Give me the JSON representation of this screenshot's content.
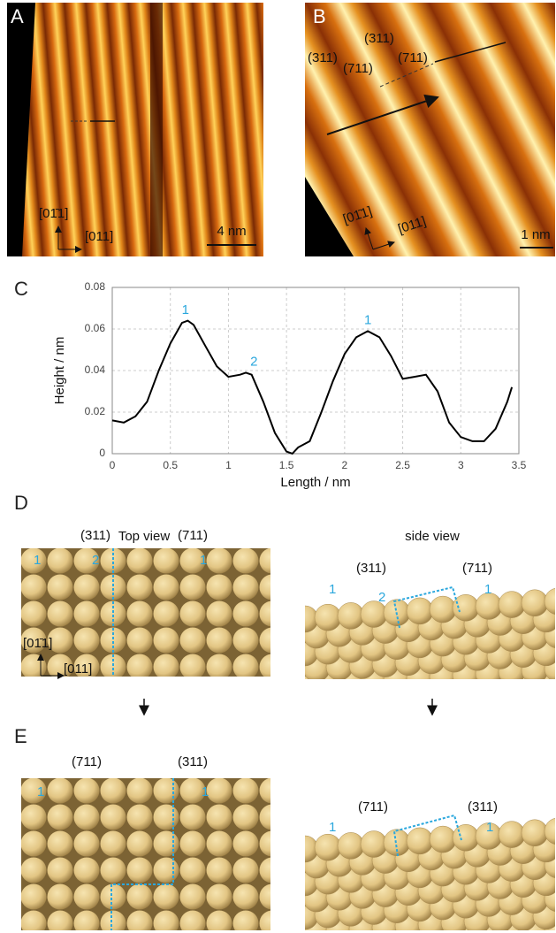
{
  "panels": {
    "A": {
      "letter": "A",
      "dir_up": "[01̄1]",
      "dir_right": "[011]",
      "scale": "4 nm"
    },
    "B": {
      "letter": "B",
      "plane1": "(311)",
      "plane2": "(311)",
      "plane3": "(711)",
      "plane4": "(711)",
      "dir_up": "[01̄1]",
      "dir_right": "[011]",
      "scale": "1 nm"
    },
    "C": {
      "letter": "C"
    },
    "D": {
      "letter": "D",
      "top_title": "Top view",
      "side_title": "side view",
      "top_plane1": "(311)",
      "top_plane2": "(711)",
      "top_site1": "1",
      "top_site2": "2",
      "top_site3": "1",
      "side_plane1": "(311)",
      "side_plane2": "(711)",
      "side_site1": "1",
      "side_site2": "2",
      "side_site3": "1",
      "dir_up": "[01̄1]",
      "dir_right": "[011]"
    },
    "E": {
      "letter": "E",
      "top_plane1": "(711)",
      "top_plane2": "(311)",
      "top_site1": "1",
      "top_site2": "1",
      "side_plane1": "(711)",
      "side_plane2": "(311)",
      "side_site1": "1",
      "side_site2": "1"
    }
  },
  "chart_data": {
    "type": "line",
    "xlabel": "Length / nm",
    "ylabel": "Height / nm",
    "color": "#000000",
    "x": [
      0,
      0.1,
      0.2,
      0.3,
      0.4,
      0.5,
      0.6,
      0.65,
      0.7,
      0.8,
      0.9,
      1.0,
      1.1,
      1.15,
      1.2,
      1.3,
      1.4,
      1.5,
      1.55,
      1.6,
      1.7,
      1.8,
      1.9,
      2.0,
      2.1,
      2.2,
      2.3,
      2.4,
      2.5,
      2.6,
      2.7,
      2.8,
      2.9,
      3.0,
      3.1,
      3.2,
      3.3,
      3.4,
      3.44
    ],
    "values": [
      0.016,
      0.015,
      0.018,
      0.025,
      0.04,
      0.053,
      0.063,
      0.064,
      0.062,
      0.052,
      0.042,
      0.037,
      0.038,
      0.039,
      0.038,
      0.025,
      0.01,
      0.001,
      0.0,
      0.003,
      0.006,
      0.02,
      0.035,
      0.048,
      0.056,
      0.059,
      0.056,
      0.047,
      0.036,
      0.037,
      0.038,
      0.03,
      0.015,
      0.008,
      0.006,
      0.006,
      0.012,
      0.025,
      0.032
    ],
    "annotations": [
      "1",
      "2",
      "1"
    ],
    "xlim": [
      0,
      3.5
    ],
    "xticks": [
      0,
      0.5,
      1,
      1.5,
      2,
      2.5,
      3,
      3.5
    ],
    "ylim": [
      0,
      0.08
    ],
    "yticks": [
      0,
      0.02,
      0.04,
      0.06,
      0.08
    ],
    "grid": true
  }
}
